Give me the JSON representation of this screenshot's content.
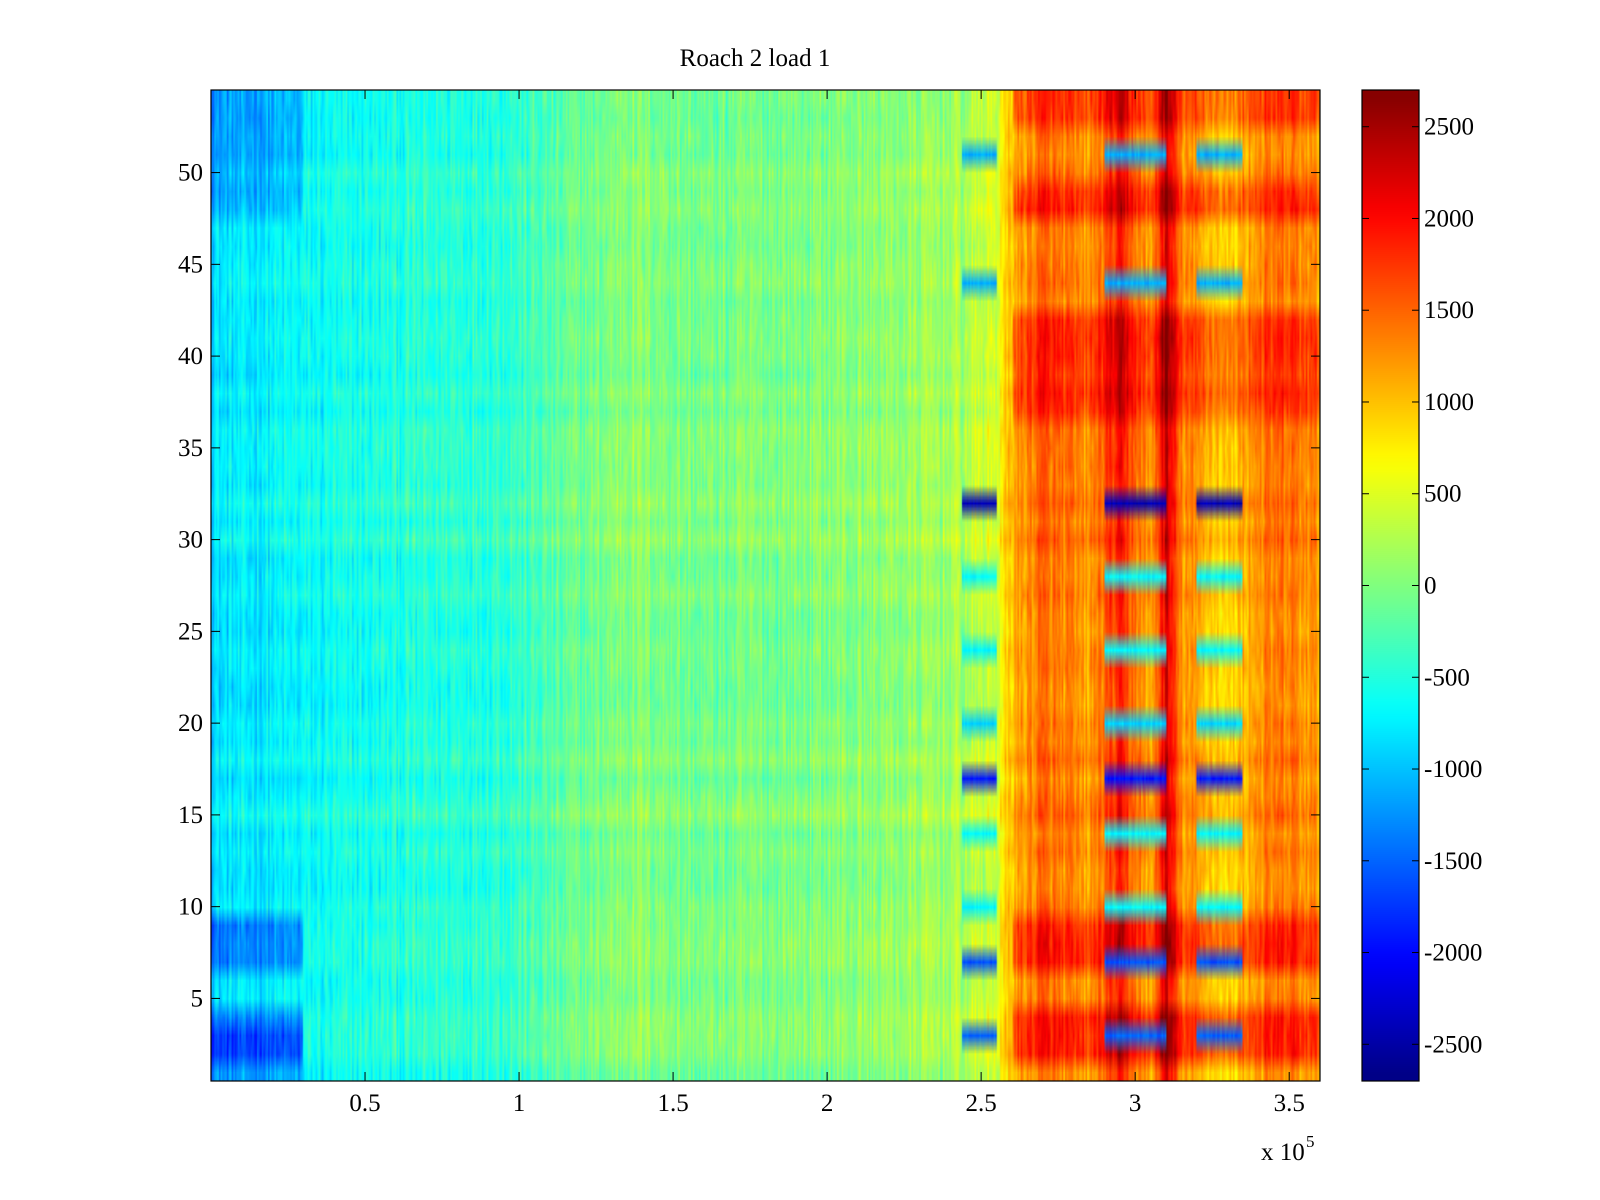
{
  "chart_data": {
    "type": "heatmap",
    "title": "Roach 2 load 1",
    "xlabel": "",
    "ylabel": "",
    "x_exponent_label": "x 10",
    "x_exponent_power": "5",
    "xlim": [
      0,
      3.6
    ],
    "ylim": [
      0.5,
      54.5
    ],
    "n_rows": 54,
    "x_ticks": [
      0.5,
      1,
      1.5,
      2,
      2.5,
      3,
      3.5
    ],
    "x_tick_labels": [
      "0.5",
      "1",
      "1.5",
      "2",
      "2.5",
      "3",
      "3.5"
    ],
    "y_ticks": [
      5,
      10,
      15,
      20,
      25,
      30,
      35,
      40,
      45,
      50
    ],
    "y_tick_labels": [
      "5",
      "10",
      "15",
      "20",
      "25",
      "30",
      "35",
      "40",
      "45",
      "50"
    ],
    "colorbar": {
      "colormap": "jet",
      "clim": [
        -2700,
        2700
      ],
      "ticks": [
        -2500,
        -2000,
        -1500,
        -1000,
        -500,
        0,
        500,
        1000,
        1500,
        2000,
        2500
      ],
      "tick_labels": [
        "-2500",
        "-2000",
        "-1500",
        "-1000",
        "-500",
        "0",
        "500",
        "1000",
        "1500",
        "2000",
        "2500"
      ]
    },
    "column_profile": {
      "x": [
        0,
        0.3,
        0.6,
        1.0,
        1.35,
        1.6,
        2.0,
        2.3,
        2.44,
        2.55,
        2.6,
        2.7,
        2.85,
        2.95,
        3.05,
        3.1,
        3.15,
        3.2,
        3.3,
        3.4,
        3.5,
        3.6
      ],
      "value": [
        -800,
        -650,
        -500,
        -350,
        100,
        -50,
        50,
        150,
        250,
        500,
        1100,
        1500,
        1200,
        1900,
        1100,
        2300,
        1300,
        1200,
        900,
        1300,
        1400,
        1200
      ]
    },
    "row_modulation": {
      "strong_bright_rows": [
        2,
        3,
        4,
        7,
        8,
        9,
        37,
        38,
        39,
        40,
        41,
        42,
        48,
        49,
        53,
        54
      ],
      "dark_rows": [
        32,
        17,
        7,
        3,
        44,
        51,
        20,
        24,
        28,
        14,
        10
      ],
      "dark_row_depth": [
        -2400,
        -1900,
        -1600,
        -1500,
        -1100,
        -1100,
        -900,
        -700,
        -700,
        -700,
        -700
      ]
    }
  }
}
